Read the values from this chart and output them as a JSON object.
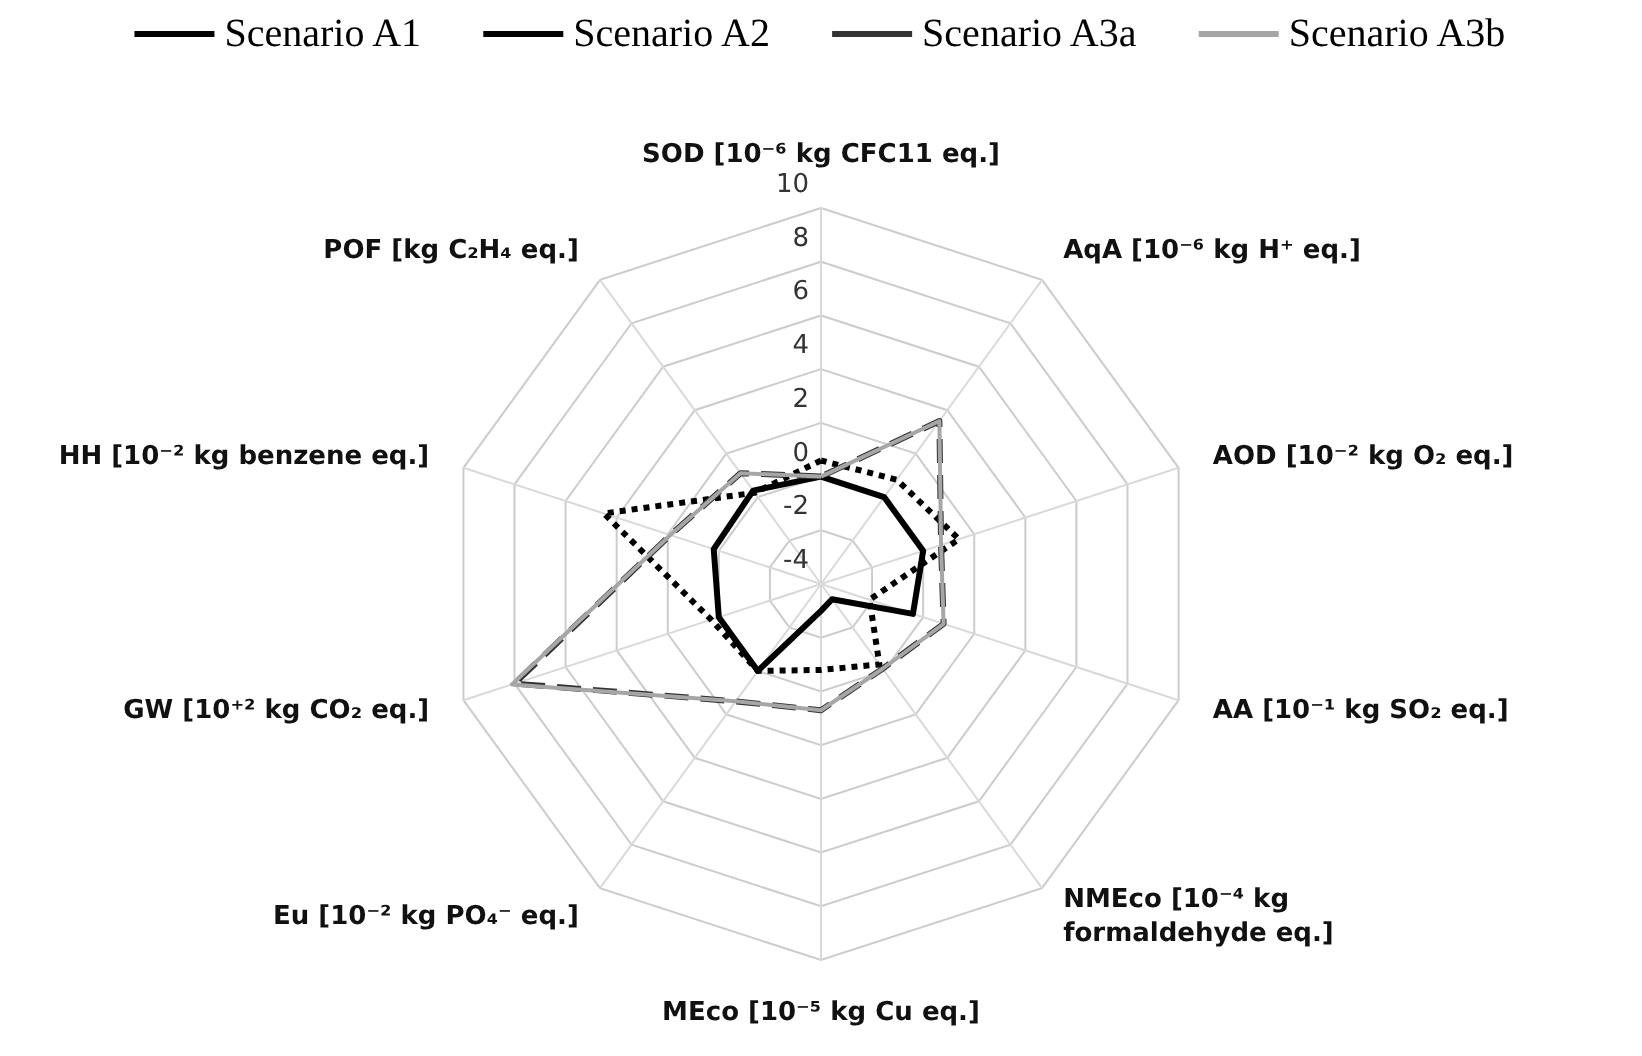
{
  "chart_data": {
    "type": "radar",
    "categories": [
      "SOD [10⁻⁶ kg CFC11 eq.]",
      "AqA [10⁻⁶ kg H⁺ eq.]",
      "AOD [10⁻² kg O₂ eq.]",
      "AA [10⁻¹ kg SO₂ eq.]",
      "NMEco [10⁻⁴ kg formaldehyde eq.]",
      "MEco [10⁻⁵ kg Cu eq.]",
      "Eu [10⁻² kg PO₄⁻ eq.]",
      "GW [10⁺² kg CO₂ eq.]",
      "HH [10⁻² kg benzene eq.]",
      "POF [kg C₂H₄ eq.]"
    ],
    "series": [
      {
        "name": "Scenario A1",
        "color": "#000000",
        "line_style": "solid",
        "values": [
          0,
          0,
          0,
          -0.4,
          -3.3,
          -3,
          0,
          0,
          0.2,
          0.3
        ]
      },
      {
        "name": "Scenario A2",
        "color": "#000000",
        "line_style": "dotted",
        "values": [
          0.6,
          0.8,
          1.4,
          -2.1,
          -0.3,
          -0.8,
          0,
          0.3,
          4.5,
          0.2
        ]
      },
      {
        "name": "Scenario A3a",
        "color": "#333333",
        "line_style": "dashed",
        "values": [
          0,
          3.5,
          0.7,
          0.8,
          -0.1,
          0.7,
          1.4,
          8,
          1.9,
          1.1
        ]
      },
      {
        "name": "Scenario A3b",
        "color": "#a6a6a6",
        "line_style": "solid",
        "values": [
          0,
          3.5,
          0.7,
          0.8,
          -0.1,
          0.7,
          1.4,
          8.1,
          1.9,
          1.1
        ]
      }
    ],
    "ylim": [
      -4,
      10
    ],
    "yticks": [
      -4,
      -2,
      0,
      2,
      4,
      6,
      8,
      10
    ],
    "legend": "top",
    "marker": "none"
  }
}
